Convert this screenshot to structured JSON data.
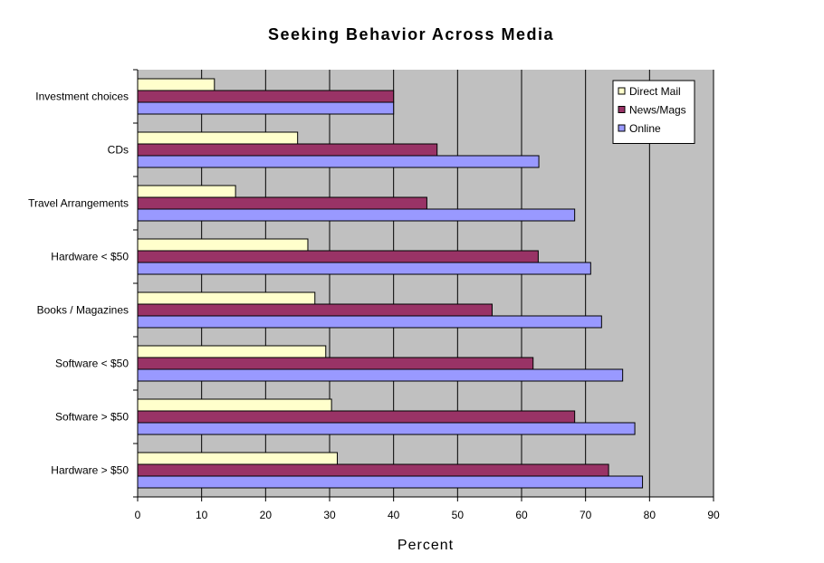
{
  "chart_data": {
    "type": "bar",
    "orientation": "horizontal",
    "title": "Seeking Behavior Across Media",
    "xlabel": "Percent",
    "ylabel": "",
    "xlim": [
      0,
      90
    ],
    "x_ticks": [
      "0",
      "10",
      "20",
      "30",
      "40",
      "50",
      "60",
      "70",
      "80",
      "90"
    ],
    "grid": true,
    "legend_position": "top-right",
    "categories": [
      "Investment choices",
      "CDs",
      "Travel Arrangements",
      "Hardware < $50",
      "Books / Magazines",
      "Software < $50",
      "Software > $50",
      "Hardware > $50"
    ],
    "series": [
      {
        "name": "Direct Mail",
        "color": "#ffffcc",
        "values": [
          12,
          25,
          15.3,
          26.6,
          27.7,
          29.4,
          30.3,
          31.2
        ]
      },
      {
        "name": "News/Mags",
        "color": "#993366",
        "values": [
          40,
          46.8,
          45.2,
          62.6,
          55.4,
          61.8,
          68.3,
          73.6
        ]
      },
      {
        "name": "Online",
        "color": "#9999ff",
        "values": [
          40,
          62.7,
          68.3,
          70.8,
          72.5,
          75.8,
          77.7,
          78.9
        ]
      }
    ],
    "plot_background": "#c0c0c0"
  }
}
